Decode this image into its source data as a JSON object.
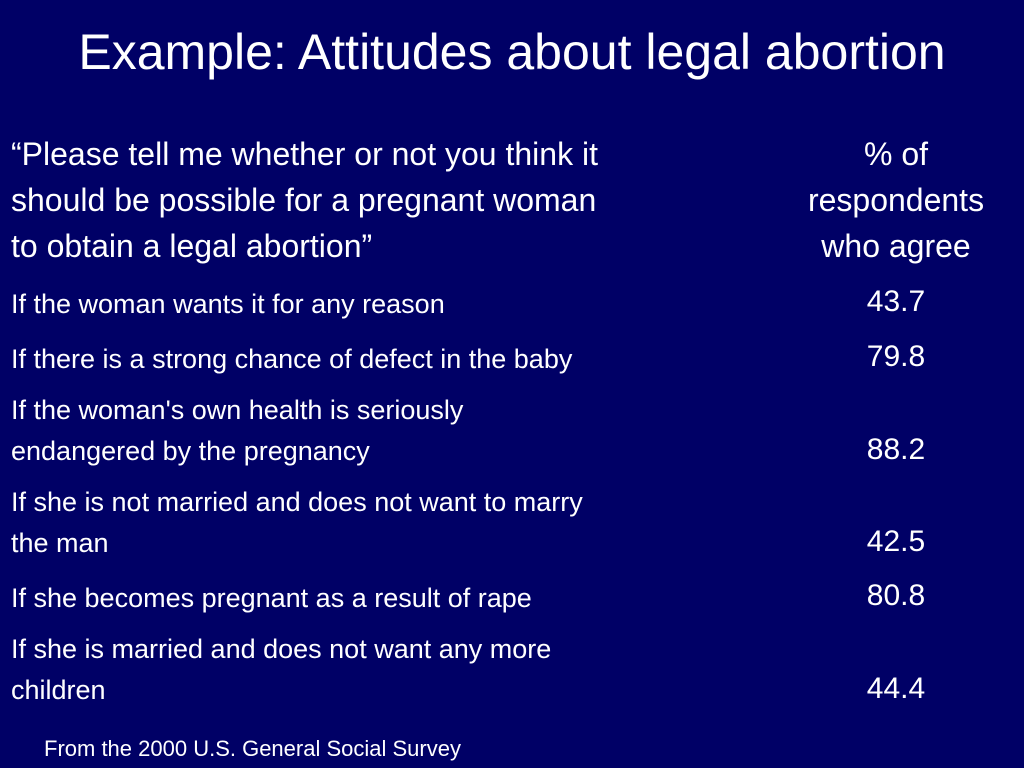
{
  "slide": {
    "title": "Example: Attitudes about legal abortion",
    "header": {
      "question_lines": [
        "“Please tell me whether or not you think it",
        "should be possible for a pregnant woman",
        "to obtain a legal abortion”"
      ],
      "value_lines": [
        "% of",
        "respondents",
        "who agree"
      ]
    },
    "rows": [
      {
        "label_lines": [
          "If the woman wants it for any reason"
        ],
        "value": "43.7"
      },
      {
        "label_lines": [
          "If there is a strong chance of defect in the baby"
        ],
        "value": "79.8"
      },
      {
        "label_lines": [
          "If the woman's own health is seriously",
          "endangered by the pregnancy"
        ],
        "value": "88.2"
      },
      {
        "label_lines": [
          "If she is not married and does not want to marry",
          "the man"
        ],
        "value": "42.5"
      },
      {
        "label_lines": [
          "If she becomes pregnant as a result of rape"
        ],
        "value": "80.8"
      },
      {
        "label_lines": [
          "If she is married and does not want any more",
          "children"
        ],
        "value": "44.4"
      }
    ],
    "footer": "From the 2000 U.S. General Social Survey"
  }
}
